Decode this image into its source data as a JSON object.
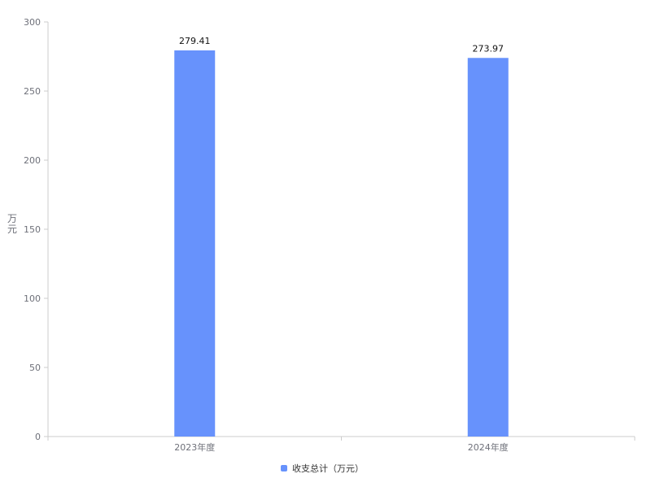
{
  "chart_data": {
    "type": "bar",
    "categories": [
      "2023年度",
      "2024年度"
    ],
    "series": [
      {
        "name": "收支总计（万元）",
        "values": [
          279.41,
          273.97
        ],
        "color": "#6792fc"
      }
    ],
    "ylabel": "万元",
    "ylim": [
      0,
      300
    ],
    "yticks": [
      0,
      50,
      100,
      150,
      200,
      250,
      300
    ],
    "data_labels": [
      "279.41",
      "273.97"
    ],
    "grid": false,
    "legend": "bottom"
  }
}
